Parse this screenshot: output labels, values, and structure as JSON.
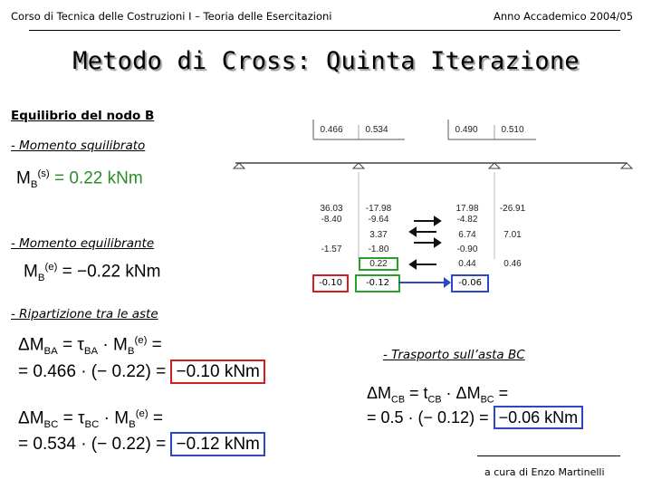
{
  "header": {
    "course": "Corso di Tecnica delle Costruzioni I – Teoria delle Esercitazioni",
    "year": "Anno Accademico 2004/05"
  },
  "title": "Metodo di Cross: Quinta Iterazione",
  "sections": {
    "equilibrio": "Equilibrio del nodo B",
    "squilibrato": "- Momento squilibrato",
    "equilibrante": "- Momento equilibrante",
    "ripartizione": "- Ripartizione tra le aste",
    "trasporto": "- Trasporto sull’asta BC"
  },
  "equations": {
    "squilibrato_lhs": "M",
    "squilibrato_sub": "B",
    "squilibrato_sup": "(s)",
    "squilibrato_value": "= 0.22 kNm",
    "equilibrante_lhs": "M",
    "equilibrante_sub": "B",
    "equilibrante_sup": "(e)",
    "equilibrante_value": "= −0.22 kNm",
    "ba_line1": "ΔM",
    "ba_sub1": "BA",
    "ba_mid": " = τ",
    "ba_sub2": "BA",
    "ba_tail": " · M",
    "ba_sub3": "B",
    "ba_sup3": "(e)",
    "ba_eq": " =",
    "ba_line2": "= 0.466 · (− 0.22) =",
    "ba_result": "−0.10 kNm",
    "bc_line1": "ΔM",
    "bc_sub1": "BC",
    "bc_mid": " = τ",
    "bc_sub2": "BC",
    "bc_tail": " · M",
    "bc_sub3": "B",
    "bc_sup3": "(e)",
    "bc_eq": " =",
    "bc_line2": "= 0.534 · (− 0.22) =",
    "bc_result": "−0.12 kNm",
    "cb_line1": "ΔM",
    "cb_sub1": "CB",
    "cb_mid": " = t",
    "cb_sub2": "CB",
    "cb_tail": " · ΔM",
    "cb_sub3": "BC",
    "cb_eq": " =",
    "cb_line2": "= 0.5 · (− 0.12) =",
    "cb_result": "−0.06 kNm"
  },
  "cross_table": {
    "dist_factors": [
      "0.466",
      "0.534",
      "0.490",
      "0.510"
    ],
    "col1": [
      "36.03",
      "-8.40",
      "",
      "-1.57"
    ],
    "col2": [
      "-17.98",
      "-9.64",
      "3.37",
      "-1.80",
      "0.22"
    ],
    "col3": [
      "17.98",
      "-4.82",
      "6.74",
      "-0.90",
      "0.44"
    ],
    "col4": [
      "-26.91",
      "",
      "7.01",
      "",
      "0.46"
    ],
    "new_values": [
      "-0.10",
      "-0.12",
      "-0.06"
    ]
  },
  "footer": "a cura di Enzo Martinelli"
}
